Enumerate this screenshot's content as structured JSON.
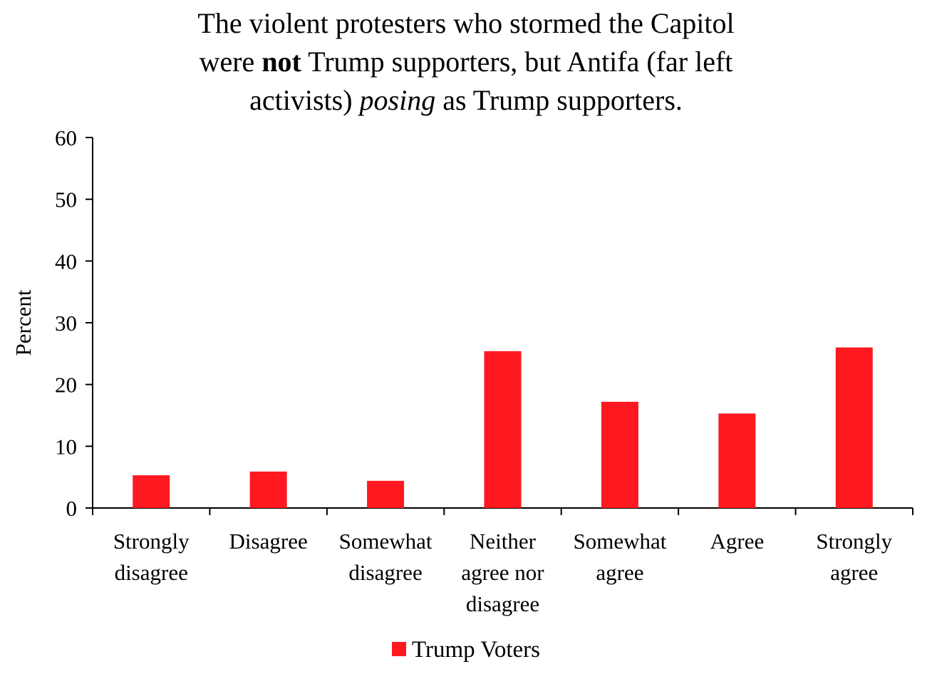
{
  "chart_data": {
    "type": "bar",
    "title": {
      "line1": "The violent protesters who stormed the Capitol",
      "line2_pre": "were ",
      "line2_bold": "not",
      "line2_post": " Trump supporters, but Antifa (far left",
      "line3_pre": "activists) ",
      "line3_italic": "posing",
      "line3_post": " as Trump supporters."
    },
    "ylabel": "Percent",
    "xlabel": "",
    "ylim": [
      0,
      60
    ],
    "yticks": [
      "0",
      "10",
      "20",
      "30",
      "40",
      "50",
      "60"
    ],
    "categories": [
      [
        "Strongly",
        "disagree"
      ],
      [
        "Disagree"
      ],
      [
        "Somewhat",
        "disagree"
      ],
      [
        "Neither",
        "agree nor",
        "disagree"
      ],
      [
        "Somewhat",
        "agree"
      ],
      [
        "Agree"
      ],
      [
        "Strongly",
        "agree"
      ]
    ],
    "series": [
      {
        "name": "Trump Voters",
        "color": "#fe1921",
        "values": [
          5.3,
          5.9,
          4.4,
          25.4,
          17.2,
          15.3,
          26.0
        ]
      }
    ],
    "legend": "bottom-center",
    "grid": false
  }
}
